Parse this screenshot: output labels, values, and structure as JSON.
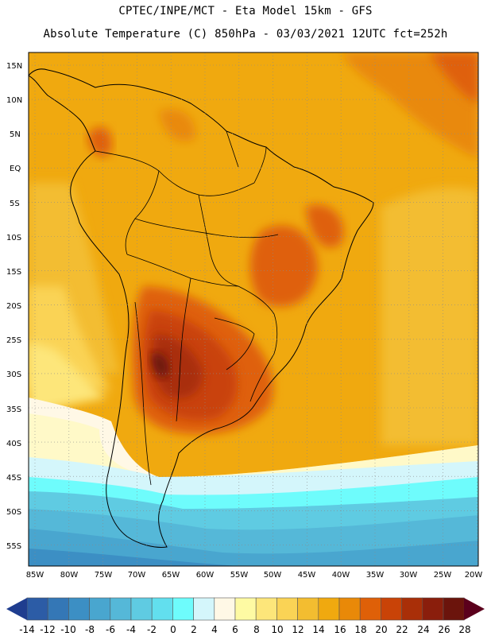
{
  "header": {
    "title_line1": "CPTEC/INPE/MCT -  Eta Model 15km - GFS",
    "title_line2": "Absolute Temperature (C) 850hPa - 03/03/2021 12UTC fct=252h"
  },
  "map": {
    "lat_labels": [
      "15N",
      "10N",
      "5N",
      "EQ",
      "5S",
      "10S",
      "15S",
      "20S",
      "25S",
      "30S",
      "35S",
      "40S",
      "45S",
      "50S",
      "55S"
    ],
    "lon_labels": [
      "85W",
      "80W",
      "75W",
      "70W",
      "65W",
      "60W",
      "55W",
      "50W",
      "45W",
      "40W",
      "35W",
      "30W",
      "25W",
      "20W"
    ]
  },
  "colorbar": {
    "labels": [
      "-14",
      "-12",
      "-10",
      "-8",
      "-6",
      "-4",
      "-2",
      "0",
      "2",
      "4",
      "6",
      "8",
      "10",
      "12",
      "14",
      "16",
      "18",
      "20",
      "22",
      "24",
      "26",
      "28"
    ],
    "colors": [
      "#1f3d8f",
      "#2c5ca6",
      "#3477b6",
      "#3c8fc4",
      "#49a6cf",
      "#55b8d8",
      "#5fcbe2",
      "#62dfee",
      "#6efcfc",
      "#d4f6fb",
      "#fff8e6",
      "#fefaa3",
      "#fde67a",
      "#fad355",
      "#f3bd30",
      "#f0a90f",
      "#e98908",
      "#df6008",
      "#c94307",
      "#a92f08",
      "#8a1e0c",
      "#6b140c",
      "#5b001c"
    ]
  }
}
